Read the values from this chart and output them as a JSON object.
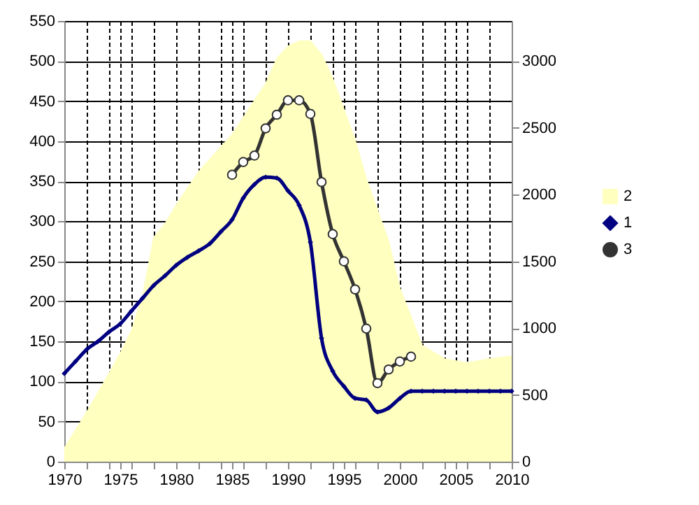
{
  "chart_data": {
    "type": "line",
    "xlim": [
      1970,
      2010
    ],
    "xticks": [
      1970,
      {
        "value": 1972,
        "label": null
      },
      {
        "value": 1974,
        "label": null
      },
      1975,
      {
        "value": 1976,
        "label": null
      },
      {
        "value": 1978,
        "label": null
      },
      1980,
      {
        "value": 1982,
        "label": null
      },
      {
        "value": 1984,
        "label": null
      },
      1985,
      {
        "value": 1986,
        "label": null
      },
      {
        "value": 1988,
        "label": null
      },
      1990,
      {
        "value": 1992,
        "label": null
      },
      {
        "value": 1994,
        "label": null
      },
      1995,
      {
        "value": 1996,
        "label": null
      },
      {
        "value": 1998,
        "label": null
      },
      2000,
      {
        "value": 2002,
        "label": null
      },
      {
        "value": 2004,
        "label": null
      },
      2005,
      {
        "value": 2006,
        "label": null
      },
      {
        "value": 2008,
        "label": null
      },
      2010
    ],
    "ylim": [
      0,
      550
    ],
    "yticks": [
      0,
      50,
      100,
      150,
      200,
      250,
      300,
      350,
      400,
      450,
      500,
      550
    ],
    "y2lim": [
      0,
      3300
    ],
    "y2ticks": [
      0,
      500,
      1000,
      1500,
      2000,
      2500,
      3000
    ],
    "grid": true,
    "legend": "right",
    "series": [
      {
        "name": "2",
        "type": "area",
        "axis": "y2",
        "color": "#ffffc0",
        "x": [
          1970,
          1972,
          1974,
          1975,
          1976,
          1977,
          1978,
          1979,
          1980,
          1982,
          1985,
          1988,
          1989,
          1990,
          1991,
          1992,
          1993,
          1994,
          1996,
          1997,
          1999,
          2000,
          2002,
          2004,
          2006,
          2008,
          2010
        ],
        "values": [
          100,
          370,
          660,
          810,
          980,
          1240,
          1680,
          1780,
          1920,
          2170,
          2450,
          2830,
          3020,
          3110,
          3150,
          3150,
          3050,
          2870,
          2410,
          2120,
          1650,
          1300,
          870,
          770,
          740,
          770,
          790
        ]
      },
      {
        "name": "1",
        "color": "#000080",
        "marker": "diamond",
        "x": [
          1970,
          1971,
          1972,
          1973,
          1974,
          1975,
          1976,
          1977,
          1978,
          1979,
          1980,
          1981,
          1982,
          1983,
          1984,
          1985,
          1986,
          1987,
          1988,
          1989,
          1990,
          1991,
          1992,
          1993,
          1994,
          1995,
          1996,
          1997,
          1998,
          1999,
          2000,
          2001,
          2002,
          2003,
          2004,
          2005,
          2006,
          2007,
          2008,
          2009,
          2010
        ],
        "values": [
          110,
          125,
          140,
          150,
          162,
          172,
          188,
          204,
          220,
          232,
          245,
          255,
          263,
          272,
          287,
          302,
          329,
          346,
          355,
          354,
          338,
          320,
          274,
          154,
          113,
          94,
          79,
          77,
          62,
          67,
          79,
          88,
          88,
          88,
          88,
          88,
          88,
          88,
          88,
          88,
          88
        ]
      },
      {
        "name": "3",
        "color": "#333333",
        "marker": "circle",
        "x": [
          1985,
          1986,
          1987,
          1988,
          1989,
          1990,
          1991,
          1992,
          1993,
          1994,
          1995,
          1996,
          1997,
          1998,
          1999,
          2000,
          2001
        ],
        "values": [
          358,
          374,
          382,
          416,
          433,
          451,
          451,
          434,
          349,
          284,
          250,
          215,
          166,
          98,
          115,
          125,
          131
        ]
      }
    ]
  }
}
